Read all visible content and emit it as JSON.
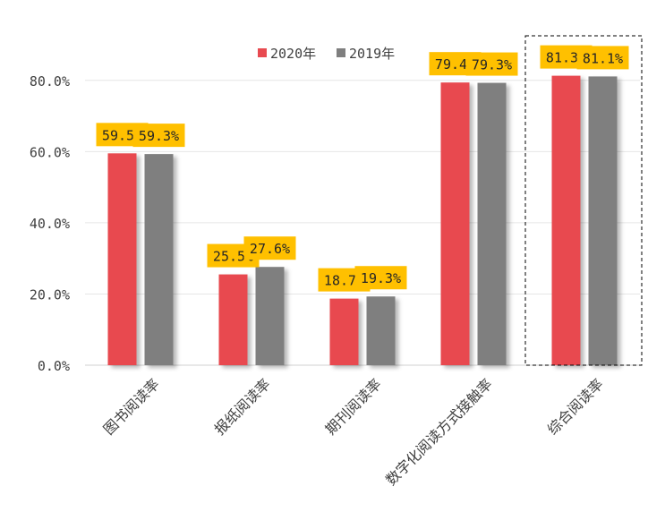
{
  "chart_data": {
    "type": "bar",
    "categories": [
      "图书阅读率",
      "报纸阅读率",
      "期刊阅读率",
      "数字化阅读方式接触率",
      "综合阅读率"
    ],
    "series": [
      {
        "name": "2020年",
        "values": [
          59.5,
          25.5,
          18.7,
          79.4,
          81.3
        ],
        "color": "#e84a50"
      },
      {
        "name": "2019年",
        "values": [
          59.3,
          27.6,
          19.3,
          79.3,
          81.1
        ],
        "color": "#7f7f7f"
      }
    ],
    "data_labels": [
      [
        "59.5%",
        "25.5%",
        "18.7%",
        "79.4%",
        "81.3%"
      ],
      [
        "59.3%",
        "27.6%",
        "19.3%",
        "79.3%",
        "81.1%"
      ]
    ],
    "y_ticks": [
      0,
      20,
      40,
      60,
      80
    ],
    "y_tick_labels": [
      "0.0%",
      "20.0%",
      "40.0%",
      "60.0%",
      "80.0%"
    ],
    "ylim": [
      0,
      90
    ],
    "grid": true,
    "legend_position": "top-center",
    "highlighted_category": "综合阅读率",
    "label_box_color": "#ffc000",
    "title": "",
    "xlabel": "",
    "ylabel": ""
  }
}
